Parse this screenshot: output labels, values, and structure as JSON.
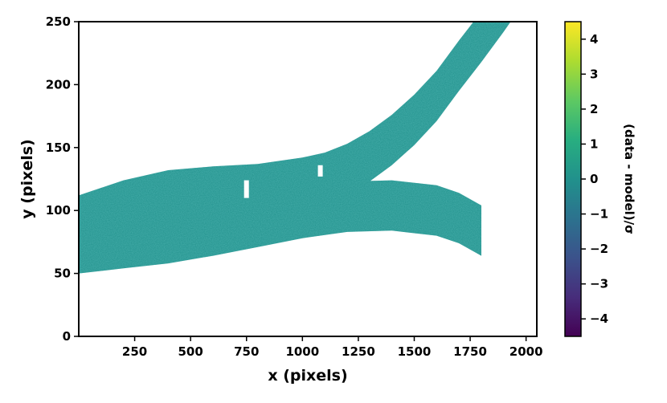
{
  "chart_data": {
    "type": "heatmap",
    "title": "",
    "xlabel": "x (pixels)",
    "ylabel": "y (pixels)",
    "xlim": [
      0,
      2048
    ],
    "ylim": [
      0,
      250
    ],
    "xticks": [
      250,
      500,
      750,
      1000,
      1250,
      1500,
      1750,
      2000
    ],
    "yticks": [
      0,
      50,
      100,
      150,
      200,
      250
    ],
    "grid": false,
    "colormap": "viridis",
    "colorbar": {
      "label": "(data - model)/σ",
      "range": [
        -4.5,
        4.5
      ],
      "ticks": [
        -4,
        -3,
        -2,
        -1,
        0,
        1,
        2,
        3,
        4
      ],
      "tick_labels": [
        "−4",
        "−3",
        "−2",
        "−1",
        "0",
        "1",
        "2",
        "3",
        "4"
      ]
    },
    "traces": [
      {
        "name": "",
        "x": [
          0,
          200,
          400,
          600,
          800,
          1000,
          1200,
          1400,
          1600,
          1700,
          1800
        ],
        "y_center": [
          70,
          74,
          78,
          84,
          91,
          98,
          103,
          104,
          100,
          94,
          84
        ],
        "fill_value": 0.0
      },
      {
        "name": "",
        "x": [
          0,
          200,
          400,
          600,
          800,
          1000,
          1100,
          1200,
          1300,
          1400,
          1500,
          1600,
          1700,
          1800,
          1900,
          2048
        ],
        "y_center": [
          92,
          104,
          112,
          115,
          117,
          122,
          126,
          133,
          143,
          156,
          172,
          191,
          215,
          238,
          262,
          300
        ],
        "fill_value": 0.0
      }
    ],
    "masked_columns": [
      {
        "x": 750,
        "y": [
          110,
          124
        ]
      },
      {
        "x": 785,
        "y": [
          23,
          60
        ]
      },
      {
        "x": 835,
        "y": [
          22,
          43
        ]
      },
      {
        "x": 990,
        "y": [
          17,
          33
        ]
      },
      {
        "x": 1080,
        "y": [
          127,
          136
        ]
      },
      {
        "x": 1285,
        "y": [
          12,
          45
        ]
      },
      {
        "x": 1870,
        "y": [
          38,
          57
        ]
      },
      {
        "x": 1895,
        "y": [
          25,
          38
        ]
      }
    ]
  }
}
